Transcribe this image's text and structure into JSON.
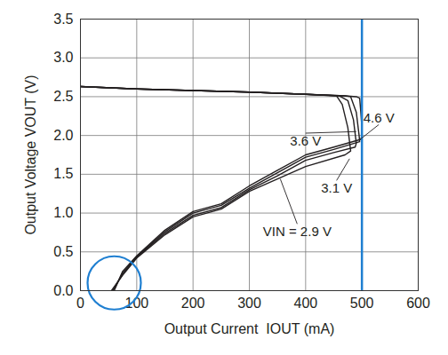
{
  "chart_data": {
    "type": "line",
    "x_label": "Output Current  IOUT (mA)",
    "y_label": "Output Voltage VOUT (V)",
    "xlim": [
      0,
      600
    ],
    "xticks": [
      0,
      100,
      200,
      300,
      400,
      500,
      600
    ],
    "ylim": [
      0,
      3.5
    ],
    "yticks": [
      {
        "value": 0,
        "label": "0.0"
      },
      0.5,
      {
        "value": 1,
        "label": "1.0"
      },
      1.5,
      {
        "value": 2,
        "label": "2.0"
      },
      2.5,
      {
        "value": 3,
        "label": "3.0"
      },
      3.5
    ],
    "grid": true,
    "color": "#231f20",
    "series": [
      {
        "name": "4.6 V",
        "color": "#231f20",
        "x": [
          0,
          100,
          200,
          300,
          400,
          470,
          490,
          496,
          498,
          500,
          500,
          498,
          450,
          400,
          350,
          300,
          250,
          200,
          150,
          100,
          75,
          60
        ],
        "values": [
          2.63,
          2.6,
          2.58,
          2.56,
          2.53,
          2.51,
          2.5,
          2.48,
          2.3,
          2.1,
          2.0,
          1.95,
          1.85,
          1.75,
          1.55,
          1.35,
          1.12,
          1.02,
          0.78,
          0.45,
          0.25,
          0
        ]
      },
      {
        "name": "3.6 V",
        "color": "#231f20",
        "x": [
          0,
          100,
          200,
          300,
          400,
          470,
          480,
          490,
          495,
          496,
          450,
          400,
          350,
          300,
          250,
          200,
          150,
          100,
          75,
          58
        ],
        "values": [
          2.63,
          2.6,
          2.58,
          2.56,
          2.53,
          2.51,
          2.5,
          2.3,
          2.0,
          1.92,
          1.82,
          1.72,
          1.52,
          1.32,
          1.1,
          1.0,
          0.76,
          0.44,
          0.23,
          0
        ]
      },
      {
        "name": "3.1 V",
        "color": "#231f20",
        "x": [
          0,
          100,
          200,
          300,
          400,
          460,
          475,
          485,
          490,
          488,
          450,
          400,
          350,
          300,
          250,
          200,
          150,
          100,
          75,
          57
        ],
        "values": [
          2.63,
          2.6,
          2.58,
          2.56,
          2.53,
          2.51,
          2.45,
          2.2,
          1.9,
          1.85,
          1.78,
          1.68,
          1.48,
          1.3,
          1.07,
          0.97,
          0.74,
          0.43,
          0.21,
          0
        ]
      },
      {
        "name": "2.9 V",
        "color": "#231f20",
        "x": [
          0,
          100,
          200,
          300,
          400,
          455,
          465,
          475,
          480,
          470,
          400,
          350,
          300,
          250,
          200,
          150,
          100,
          75,
          55
        ],
        "values": [
          2.63,
          2.6,
          2.58,
          2.56,
          2.53,
          2.51,
          2.4,
          2.1,
          1.8,
          1.75,
          1.6,
          1.44,
          1.28,
          1.05,
          0.95,
          0.72,
          0.42,
          0.2,
          0
        ]
      }
    ],
    "annotations": [
      {
        "text": "4.6 V",
        "x": 530,
        "y": 2.14,
        "points_to": [
          497,
          1.95
        ]
      },
      {
        "text": "3.6 V",
        "x": 400,
        "y": 2.03,
        "points_to": [
          490,
          2.05
        ]
      },
      {
        "text": "3.1 V",
        "x": 455,
        "y": 1.42,
        "points_to": [
          478,
          1.7
        ]
      },
      {
        "text": "VIN = 2.9 V",
        "x": 385,
        "y": 0.86,
        "points_to": [
          355,
          1.44
        ]
      }
    ],
    "reference_lines": [
      {
        "x": 500,
        "color": "#1f7fd1"
      }
    ],
    "highlight_circle": {
      "x": 60,
      "y": 0.1,
      "color": "#1f7fd1"
    }
  }
}
